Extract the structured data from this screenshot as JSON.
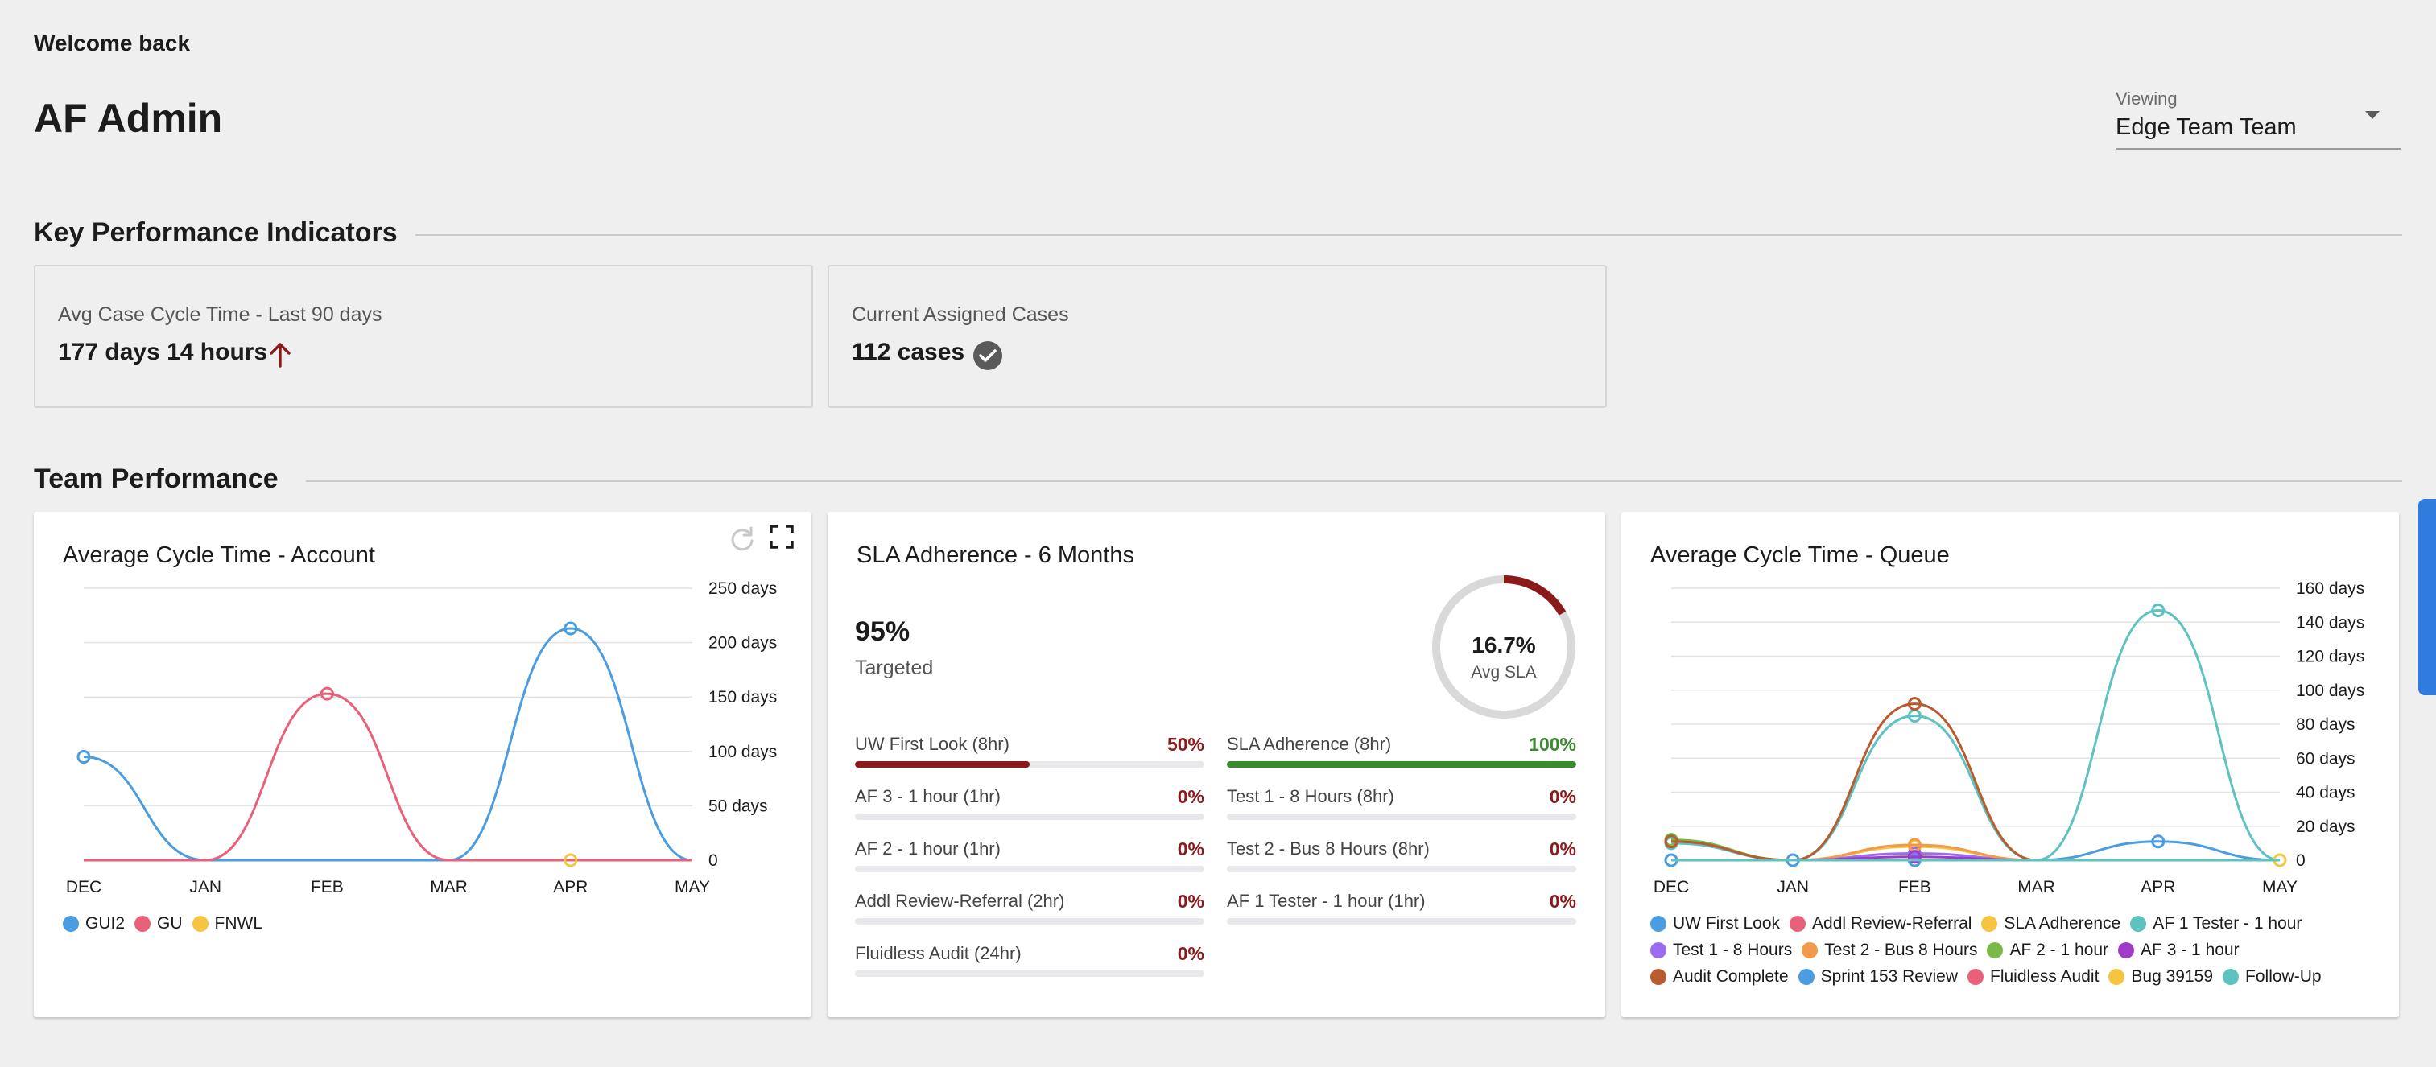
{
  "header": {
    "welcome": "Welcome back",
    "user_name": "AF Admin",
    "viewing_label": "Viewing",
    "viewing_value": "Edge Team Team"
  },
  "kpi_section": {
    "title": "Key Performance Indicators",
    "cards": [
      {
        "label": "Avg Case Cycle Time - Last 90 days",
        "value": "177 days 14 hours",
        "icon": "arrow-up-icon",
        "icon_color": "#8b1a1a"
      },
      {
        "label": "Current Assigned Cases",
        "value": "112 cases",
        "icon": "check-circle-icon",
        "icon_color": "#5a5a5a"
      }
    ]
  },
  "team_section": {
    "title": "Team Performance"
  },
  "account_chart": {
    "title": "Average Cycle Time - Account"
  },
  "sla_card": {
    "title": "SLA Adherence - 6 Months",
    "targeted_value": "95%",
    "targeted_label": "Targeted",
    "avg_value": "16.7%",
    "avg_label": "Avg SLA",
    "avg_fraction": 0.167,
    "ring_color": "#8b1a1a",
    "items": [
      {
        "name": "UW First Look (8hr)",
        "pct": "50%",
        "fraction": 0.5,
        "color": "#8b1a1a"
      },
      {
        "name": "SLA Adherence (8hr)",
        "pct": "100%",
        "fraction": 1.0,
        "color": "#3a8a2e"
      },
      {
        "name": "AF 3 - 1 hour (1hr)",
        "pct": "0%",
        "fraction": 0,
        "color": "#8b1a1a"
      },
      {
        "name": "Test 1 - 8 Hours (8hr)",
        "pct": "0%",
        "fraction": 0,
        "color": "#8b1a1a"
      },
      {
        "name": "AF 2 - 1 hour (1hr)",
        "pct": "0%",
        "fraction": 0,
        "color": "#8b1a1a"
      },
      {
        "name": "Test 2 - Bus 8 Hours (8hr)",
        "pct": "0%",
        "fraction": 0,
        "color": "#8b1a1a"
      },
      {
        "name": "Addl Review-Referral (2hr)",
        "pct": "0%",
        "fraction": 0,
        "color": "#8b1a1a"
      },
      {
        "name": "AF 1 Tester - 1 hour (1hr)",
        "pct": "0%",
        "fraction": 0,
        "color": "#8b1a1a"
      },
      {
        "name": "Fluidless Audit (24hr)",
        "pct": "0%",
        "fraction": 0,
        "color": "#8b1a1a"
      }
    ]
  },
  "queue_chart": {
    "title": "Average Cycle Time - Queue"
  },
  "chart_data": [
    {
      "type": "line",
      "title": "Average Cycle Time - Account",
      "categories": [
        "DEC",
        "JAN",
        "FEB",
        "MAR",
        "APR",
        "MAY"
      ],
      "ylim": [
        0,
        250
      ],
      "y_ticks": [
        0,
        50,
        100,
        150,
        200,
        250
      ],
      "y_tick_labels": [
        "0",
        "50 days",
        "100 days",
        "150 days",
        "200 days",
        "250 days"
      ],
      "y_axis_side": "right",
      "grid": true,
      "legend_position": "bottom-left",
      "series": [
        {
          "name": "GUI2",
          "color": "#4a9de0",
          "values": [
            95,
            0,
            0,
            0,
            213,
            0
          ]
        },
        {
          "name": "GU",
          "color": "#e8607a",
          "values": [
            0,
            0,
            153,
            0,
            0,
            0
          ]
        },
        {
          "name": "FNWL",
          "color": "#f5c542",
          "values": [
            null,
            null,
            null,
            null,
            0,
            null
          ]
        }
      ]
    },
    {
      "type": "line",
      "title": "Average Cycle Time - Queue",
      "categories": [
        "DEC",
        "JAN",
        "FEB",
        "MAR",
        "APR",
        "MAY"
      ],
      "ylim": [
        0,
        160
      ],
      "y_ticks": [
        0,
        20,
        40,
        60,
        80,
        100,
        120,
        140,
        160
      ],
      "y_tick_labels": [
        "0",
        "20 days",
        "40 days",
        "60 days",
        "80 days",
        "100 days",
        "120 days",
        "140 days",
        "160 days"
      ],
      "y_axis_side": "right",
      "grid": true,
      "legend_position": "bottom-left",
      "series": [
        {
          "name": "UW First Look",
          "color": "#4a9de0",
          "values": [
            0,
            0,
            0,
            0,
            11,
            0
          ]
        },
        {
          "name": "Addl Review-Referral",
          "color": "#e8607a",
          "values": [
            0,
            0,
            0,
            0,
            0,
            0
          ]
        },
        {
          "name": "SLA Adherence",
          "color": "#f5c542",
          "values": [
            0,
            0,
            8,
            0,
            0,
            0
          ]
        },
        {
          "name": "AF 1 Tester - 1 hour",
          "color": "#5ec2bf",
          "values": [
            10,
            0,
            85,
            0,
            147,
            0
          ]
        },
        {
          "name": "Test 1 - 8 Hours",
          "color": "#9b6cf0",
          "values": [
            0,
            0,
            4,
            0,
            0,
            0
          ]
        },
        {
          "name": "Test 2 - Bus 8 Hours",
          "color": "#f19a4a",
          "values": [
            0,
            0,
            9,
            0,
            0,
            0
          ]
        },
        {
          "name": "AF 2 - 1 hour",
          "color": "#7bb84a",
          "values": [
            12,
            0,
            0,
            0,
            0,
            0
          ]
        },
        {
          "name": "AF 3 - 1 hour",
          "color": "#a03bc8",
          "values": [
            0,
            0,
            2,
            0,
            0,
            0
          ]
        },
        {
          "name": "Audit Complete",
          "color": "#b85c30",
          "values": [
            11,
            0,
            92,
            0,
            0,
            0
          ]
        },
        {
          "name": "Sprint 153 Review",
          "color": "#4a9de0",
          "values": [
            0,
            0,
            0,
            0,
            0,
            0
          ]
        },
        {
          "name": "Fluidless Audit",
          "color": "#e8607a",
          "values": [
            0,
            0,
            0,
            0,
            0,
            0
          ]
        },
        {
          "name": "Bug 39159",
          "color": "#f5c542",
          "values": [
            null,
            null,
            null,
            null,
            null,
            0
          ]
        },
        {
          "name": "Follow-Up",
          "color": "#5ec2bf",
          "values": [
            0,
            0,
            0,
            0,
            0,
            0
          ]
        }
      ]
    }
  ]
}
